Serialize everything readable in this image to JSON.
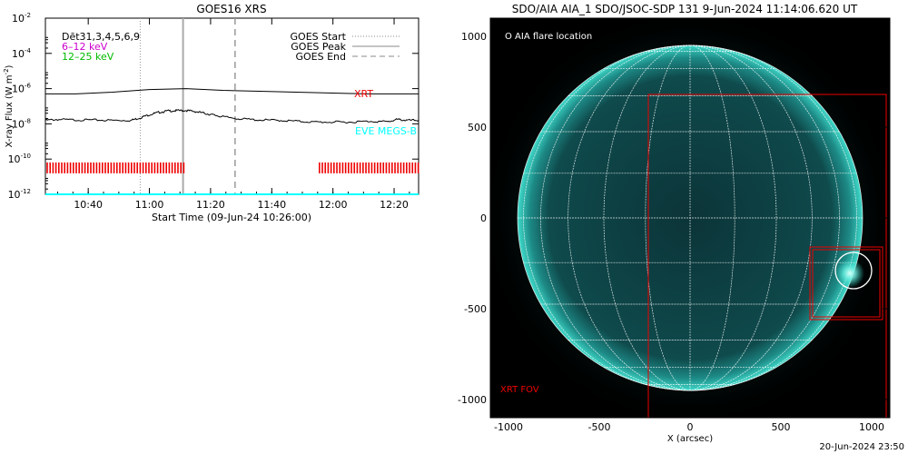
{
  "chart_data": [
    {
      "type": "line",
      "title": "GOES16 XRS",
      "xlabel": "Start Time (09-Jun-24 10:26:00)",
      "ylabel": "X-ray Flux (W m",
      "ylabel_sup": "-2",
      "ylabel_tail": ")",
      "y_scale": "log",
      "ylim": [
        1e-12,
        0.01
      ],
      "xlim_minutes": [
        10.4333,
        12.4667
      ],
      "x_ticks": [
        {
          "label": "10:40",
          "hours": 10.6667
        },
        {
          "label": "11:00",
          "hours": 11.0
        },
        {
          "label": "11:20",
          "hours": 11.3333
        },
        {
          "label": "11:40",
          "hours": 11.6667
        },
        {
          "label": "12:00",
          "hours": 12.0
        },
        {
          "label": "12:20",
          "hours": 12.3333
        }
      ],
      "y_ticks": [
        {
          "base": "10",
          "exp": "-2",
          "value": -2
        },
        {
          "base": "10",
          "exp": "-4",
          "value": -4
        },
        {
          "base": "10",
          "exp": "-6",
          "value": -6
        },
        {
          "base": "10",
          "exp": "-8",
          "value": -8
        },
        {
          "base": "10",
          "exp": "-10",
          "value": -10
        },
        {
          "base": "10",
          "exp": "-12",
          "value": -12
        }
      ],
      "legend_left": [
        {
          "text": "Dēt31,3,4,5,6,9",
          "color": "#000000"
        },
        {
          "text": "6–12 keV",
          "color": "#cc00cc"
        },
        {
          "text": "12–25 keV",
          "color": "#00bb00"
        }
      ],
      "legend_right": [
        {
          "text": "GOES Start",
          "style": "dotted"
        },
        {
          "text": "GOES Peak",
          "style": "solid"
        },
        {
          "text": "GOES End",
          "style": "dashed"
        }
      ],
      "labels": {
        "xrt": "XRT",
        "eve": "EVE MEGS-B"
      },
      "vlines_hours": {
        "start": 10.95,
        "peak": 11.1833,
        "end": 11.4667
      },
      "series": [
        {
          "name": "",
          "color": "#000000",
          "x_hours": [
            10.4333,
            10.6,
            10.8,
            11.0,
            11.2,
            11.4,
            11.6,
            11.8,
            12.0,
            12.2,
            12.4667
          ],
          "log10_flux": [
            -6.3,
            -6.3,
            -6.2,
            -6.05,
            -6.0,
            -6.1,
            -6.15,
            -6.2,
            -6.25,
            -6.3,
            -6.3
          ]
        },
        {
          "name": "",
          "color": "#000000",
          "x_hours": [
            10.4333,
            10.5,
            10.6,
            10.7,
            10.8,
            10.9,
            10.95,
            11.0,
            11.05,
            11.1,
            11.15,
            11.2,
            11.25,
            11.3,
            11.35,
            11.4,
            11.5,
            11.6,
            11.7,
            11.8,
            11.9,
            12.0,
            12.1,
            12.2,
            12.3,
            12.35,
            12.4,
            12.4667
          ],
          "log10_flux": [
            -7.8,
            -7.75,
            -7.78,
            -7.78,
            -7.8,
            -7.8,
            -7.65,
            -7.48,
            -7.35,
            -7.27,
            -7.25,
            -7.24,
            -7.3,
            -7.4,
            -7.5,
            -7.6,
            -7.72,
            -7.78,
            -7.8,
            -7.85,
            -7.9,
            -7.9,
            -7.9,
            -7.85,
            -7.88,
            -7.75,
            -7.8,
            -7.8
          ]
        },
        {
          "name": "",
          "color": "#00ffff",
          "x_hours": [
            10.4333,
            12.4667
          ],
          "log10_flux": [
            -12.0,
            -12.0
          ]
        }
      ],
      "xrt_intervals_hours": [
        [
          10.4333,
          11.2
        ],
        [
          11.9167,
          12.4667
        ]
      ],
      "xrt_level_log10": -10.5
    },
    {
      "type": "image",
      "title": "SDO/AIA AIA_1 SDO/JSOC-SDP 131  9-Jun-2024 11:14:06.620 UT",
      "xlabel": "X (arcsec)",
      "ylabel": "",
      "xlim": [
        -1100,
        1100
      ],
      "ylim": [
        -1100,
        1100
      ],
      "x_ticks": [
        "-1000",
        "-500",
        "0",
        "500",
        "1000"
      ],
      "y_ticks": [
        "1000",
        "500",
        "0",
        "-500",
        "-1000"
      ],
      "legend": "O AIA flare location",
      "fov_label": "XRT FOV",
      "solar_radius_arcsec": 950,
      "flare_location_arcsec": [
        900,
        -290
      ],
      "xrt_fov_arcsec": {
        "x0": -230,
        "x1": 1080,
        "y0": -1100,
        "y1": 680
      },
      "xrt_subfov_arcsec": {
        "x0": 660,
        "x1": 1060,
        "y0": -560,
        "y1": -160
      }
    }
  ],
  "footer": {
    "timestamp": "20-Jun-2024 23:50"
  },
  "colors": {
    "xrt": "#ee0000",
    "eve": "#00ffff",
    "disk": "#0b3438",
    "corona": "#2fd6c6"
  }
}
